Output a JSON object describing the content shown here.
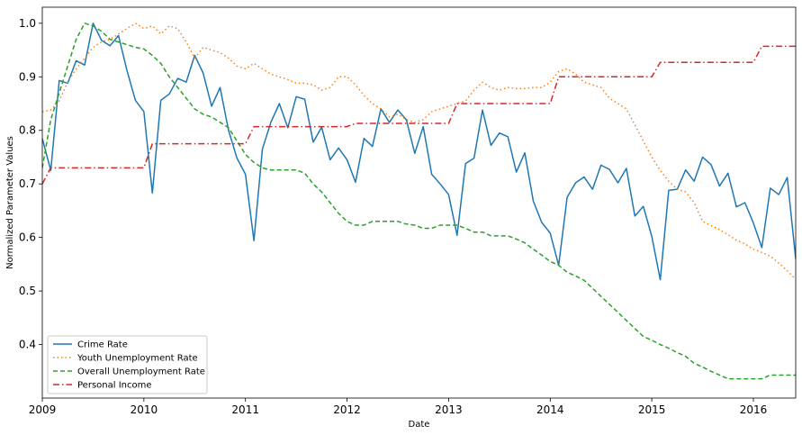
{
  "chart_data": {
    "type": "line",
    "title": "",
    "xlabel": "Date",
    "ylabel": "Normalized Parameter Values",
    "xlim": [
      "2009-01",
      "2016-06"
    ],
    "ylim": [
      0.3,
      1.03
    ],
    "x_ticks": [
      "2009",
      "2010",
      "2011",
      "2012",
      "2013",
      "2014",
      "2015",
      "2016"
    ],
    "y_ticks": [
      "0.4",
      "0.5",
      "0.6",
      "0.7",
      "0.8",
      "0.9",
      "1.0"
    ],
    "grid": false,
    "legend_position": "lower-left",
    "series": [
      {
        "name": "Crime Rate",
        "color": "#1f77b4",
        "style": "solid",
        "points": [
          [
            "2009-01",
            0.785
          ],
          [
            "2009-02",
            0.725
          ],
          [
            "2009-03",
            0.893
          ],
          [
            "2009-04",
            0.888
          ],
          [
            "2009-05",
            0.93
          ],
          [
            "2009-06",
            0.922
          ],
          [
            "2009-07",
            1.0
          ],
          [
            "2009-08",
            0.968
          ],
          [
            "2009-09",
            0.958
          ],
          [
            "2009-10",
            0.977
          ],
          [
            "2009-11",
            0.912
          ],
          [
            "2009-12",
            0.856
          ],
          [
            "2010-01",
            0.835
          ],
          [
            "2010-02",
            0.683
          ],
          [
            "2010-03",
            0.856
          ],
          [
            "2010-04",
            0.868
          ],
          [
            "2010-05",
            0.897
          ],
          [
            "2010-06",
            0.89
          ],
          [
            "2010-07",
            0.94
          ],
          [
            "2010-08",
            0.907
          ],
          [
            "2010-09",
            0.845
          ],
          [
            "2010-10",
            0.88
          ],
          [
            "2010-11",
            0.8
          ],
          [
            "2010-12",
            0.748
          ],
          [
            "2011-01",
            0.718
          ],
          [
            "2011-02",
            0.594
          ],
          [
            "2011-03",
            0.765
          ],
          [
            "2011-04",
            0.815
          ],
          [
            "2011-05",
            0.85
          ],
          [
            "2011-06",
            0.805
          ],
          [
            "2011-07",
            0.863
          ],
          [
            "2011-08",
            0.858
          ],
          [
            "2011-09",
            0.778
          ],
          [
            "2011-10",
            0.806
          ],
          [
            "2011-11",
            0.745
          ],
          [
            "2011-12",
            0.767
          ],
          [
            "2012-01",
            0.745
          ],
          [
            "2012-02",
            0.703
          ],
          [
            "2012-03",
            0.785
          ],
          [
            "2012-04",
            0.77
          ],
          [
            "2012-05",
            0.84
          ],
          [
            "2012-06",
            0.815
          ],
          [
            "2012-07",
            0.838
          ],
          [
            "2012-08",
            0.82
          ],
          [
            "2012-09",
            0.757
          ],
          [
            "2012-10",
            0.807
          ],
          [
            "2012-11",
            0.718
          ],
          [
            "2012-12",
            0.7
          ],
          [
            "2013-01",
            0.68
          ],
          [
            "2013-02",
            0.604
          ],
          [
            "2013-03",
            0.738
          ],
          [
            "2013-04",
            0.748
          ],
          [
            "2013-05",
            0.838
          ],
          [
            "2013-06",
            0.772
          ],
          [
            "2013-07",
            0.795
          ],
          [
            "2013-08",
            0.788
          ],
          [
            "2013-09",
            0.722
          ],
          [
            "2013-10",
            0.758
          ],
          [
            "2013-11",
            0.668
          ],
          [
            "2013-12",
            0.628
          ],
          [
            "2014-01",
            0.608
          ],
          [
            "2014-02",
            0.548
          ],
          [
            "2014-03",
            0.675
          ],
          [
            "2014-04",
            0.702
          ],
          [
            "2014-05",
            0.713
          ],
          [
            "2014-06",
            0.69
          ],
          [
            "2014-07",
            0.735
          ],
          [
            "2014-08",
            0.727
          ],
          [
            "2014-09",
            0.702
          ],
          [
            "2014-10",
            0.729
          ],
          [
            "2014-11",
            0.64
          ],
          [
            "2014-12",
            0.658
          ],
          [
            "2015-01",
            0.602
          ],
          [
            "2015-02",
            0.521
          ],
          [
            "2015-03",
            0.688
          ],
          [
            "2015-04",
            0.69
          ],
          [
            "2015-05",
            0.726
          ],
          [
            "2015-06",
            0.705
          ],
          [
            "2015-07",
            0.75
          ],
          [
            "2015-08",
            0.736
          ],
          [
            "2015-09",
            0.696
          ],
          [
            "2015-10",
            0.72
          ],
          [
            "2015-11",
            0.657
          ],
          [
            "2015-12",
            0.665
          ],
          [
            "2016-01",
            0.627
          ],
          [
            "2016-02",
            0.581
          ],
          [
            "2016-03",
            0.692
          ],
          [
            "2016-04",
            0.68
          ],
          [
            "2016-05",
            0.712
          ],
          [
            "2016-06",
            0.56
          ]
        ]
      },
      {
        "name": "Youth Unemployment Rate",
        "color": "#ff7f0e",
        "style": "dotted",
        "points": [
          [
            "2009-01",
            0.835
          ],
          [
            "2009-02",
            0.838
          ],
          [
            "2009-03",
            0.855
          ],
          [
            "2009-04",
            0.89
          ],
          [
            "2009-05",
            0.915
          ],
          [
            "2009-06",
            0.935
          ],
          [
            "2009-07",
            0.955
          ],
          [
            "2009-08",
            0.965
          ],
          [
            "2009-09",
            0.97
          ],
          [
            "2009-10",
            0.98
          ],
          [
            "2009-11",
            0.99
          ],
          [
            "2009-12",
            1.0
          ],
          [
            "2010-01",
            0.99
          ],
          [
            "2010-02",
            0.995
          ],
          [
            "2010-03",
            0.98
          ],
          [
            "2010-04",
            0.995
          ],
          [
            "2010-05",
            0.99
          ],
          [
            "2010-06",
            0.965
          ],
          [
            "2010-07",
            0.935
          ],
          [
            "2010-08",
            0.955
          ],
          [
            "2010-09",
            0.95
          ],
          [
            "2010-10",
            0.945
          ],
          [
            "2010-11",
            0.935
          ],
          [
            "2010-12",
            0.92
          ],
          [
            "2011-01",
            0.915
          ],
          [
            "2011-02",
            0.925
          ],
          [
            "2011-03",
            0.915
          ],
          [
            "2011-04",
            0.905
          ],
          [
            "2011-05",
            0.9
          ],
          [
            "2011-06",
            0.895
          ],
          [
            "2011-07",
            0.888
          ],
          [
            "2011-08",
            0.888
          ],
          [
            "2011-09",
            0.885
          ],
          [
            "2011-10",
            0.875
          ],
          [
            "2011-11",
            0.88
          ],
          [
            "2011-12",
            0.9
          ],
          [
            "2012-01",
            0.9
          ],
          [
            "2012-02",
            0.885
          ],
          [
            "2012-03",
            0.865
          ],
          [
            "2012-04",
            0.85
          ],
          [
            "2012-05",
            0.84
          ],
          [
            "2012-06",
            0.825
          ],
          [
            "2012-07",
            0.83
          ],
          [
            "2012-08",
            0.82
          ],
          [
            "2012-09",
            0.815
          ],
          [
            "2012-10",
            0.82
          ],
          [
            "2012-11",
            0.835
          ],
          [
            "2012-12",
            0.84
          ],
          [
            "2013-01",
            0.845
          ],
          [
            "2013-02",
            0.85
          ],
          [
            "2013-03",
            0.855
          ],
          [
            "2013-04",
            0.875
          ],
          [
            "2013-05",
            0.89
          ],
          [
            "2013-06",
            0.88
          ],
          [
            "2013-07",
            0.875
          ],
          [
            "2013-08",
            0.88
          ],
          [
            "2013-09",
            0.878
          ],
          [
            "2013-10",
            0.878
          ],
          [
            "2013-11",
            0.88
          ],
          [
            "2013-12",
            0.88
          ],
          [
            "2014-01",
            0.89
          ],
          [
            "2014-02",
            0.91
          ],
          [
            "2014-03",
            0.915
          ],
          [
            "2014-04",
            0.905
          ],
          [
            "2014-05",
            0.89
          ],
          [
            "2014-06",
            0.885
          ],
          [
            "2014-07",
            0.88
          ],
          [
            "2014-08",
            0.86
          ],
          [
            "2014-09",
            0.85
          ],
          [
            "2014-10",
            0.84
          ],
          [
            "2014-11",
            0.81
          ],
          [
            "2014-12",
            0.78
          ],
          [
            "2015-01",
            0.75
          ],
          [
            "2015-02",
            0.725
          ],
          [
            "2015-03",
            0.705
          ],
          [
            "2015-04",
            0.69
          ],
          [
            "2015-05",
            0.685
          ],
          [
            "2015-06",
            0.665
          ],
          [
            "2015-07",
            0.63
          ],
          [
            "2015-08",
            0.622
          ],
          [
            "2015-09",
            0.615
          ],
          [
            "2015-10",
            0.605
          ],
          [
            "2015-11",
            0.595
          ],
          [
            "2015-12",
            0.588
          ],
          [
            "2016-01",
            0.578
          ],
          [
            "2016-02",
            0.572
          ],
          [
            "2016-03",
            0.565
          ],
          [
            "2016-04",
            0.552
          ],
          [
            "2016-05",
            0.538
          ],
          [
            "2016-06",
            0.522
          ]
        ]
      },
      {
        "name": "Overall Unemployment Rate",
        "color": "#2ca02c",
        "style": "dashed",
        "points": [
          [
            "2009-01",
            0.73
          ],
          [
            "2009-02",
            0.82
          ],
          [
            "2009-03",
            0.87
          ],
          [
            "2009-04",
            0.92
          ],
          [
            "2009-05",
            0.97
          ],
          [
            "2009-06",
            1.0
          ],
          [
            "2009-07",
            0.995
          ],
          [
            "2009-08",
            0.985
          ],
          [
            "2009-09",
            0.97
          ],
          [
            "2009-10",
            0.965
          ],
          [
            "2009-11",
            0.96
          ],
          [
            "2009-12",
            0.955
          ],
          [
            "2010-01",
            0.952
          ],
          [
            "2010-02",
            0.94
          ],
          [
            "2010-03",
            0.925
          ],
          [
            "2010-04",
            0.9
          ],
          [
            "2010-05",
            0.88
          ],
          [
            "2010-06",
            0.86
          ],
          [
            "2010-07",
            0.84
          ],
          [
            "2010-08",
            0.83
          ],
          [
            "2010-09",
            0.825
          ],
          [
            "2010-10",
            0.815
          ],
          [
            "2010-11",
            0.805
          ],
          [
            "2010-12",
            0.78
          ],
          [
            "2011-01",
            0.755
          ],
          [
            "2011-02",
            0.74
          ],
          [
            "2011-03",
            0.73
          ],
          [
            "2011-04",
            0.726
          ],
          [
            "2011-05",
            0.726
          ],
          [
            "2011-06",
            0.726
          ],
          [
            "2011-07",
            0.726
          ],
          [
            "2011-08",
            0.72
          ],
          [
            "2011-09",
            0.7
          ],
          [
            "2011-10",
            0.685
          ],
          [
            "2011-11",
            0.665
          ],
          [
            "2011-12",
            0.645
          ],
          [
            "2012-01",
            0.63
          ],
          [
            "2012-02",
            0.623
          ],
          [
            "2012-03",
            0.623
          ],
          [
            "2012-04",
            0.63
          ],
          [
            "2012-05",
            0.63
          ],
          [
            "2012-06",
            0.63
          ],
          [
            "2012-07",
            0.63
          ],
          [
            "2012-08",
            0.625
          ],
          [
            "2012-09",
            0.623
          ],
          [
            "2012-10",
            0.617
          ],
          [
            "2012-11",
            0.617
          ],
          [
            "2012-12",
            0.623
          ],
          [
            "2013-01",
            0.623
          ],
          [
            "2013-02",
            0.623
          ],
          [
            "2013-03",
            0.617
          ],
          [
            "2013-04",
            0.61
          ],
          [
            "2013-05",
            0.61
          ],
          [
            "2013-06",
            0.603
          ],
          [
            "2013-07",
            0.603
          ],
          [
            "2013-08",
            0.603
          ],
          [
            "2013-09",
            0.597
          ],
          [
            "2013-10",
            0.59
          ],
          [
            "2013-11",
            0.578
          ],
          [
            "2013-12",
            0.567
          ],
          [
            "2014-01",
            0.555
          ],
          [
            "2014-02",
            0.548
          ],
          [
            "2014-03",
            0.535
          ],
          [
            "2014-04",
            0.528
          ],
          [
            "2014-05",
            0.52
          ],
          [
            "2014-06",
            0.505
          ],
          [
            "2014-07",
            0.49
          ],
          [
            "2014-08",
            0.475
          ],
          [
            "2014-09",
            0.46
          ],
          [
            "2014-10",
            0.445
          ],
          [
            "2014-11",
            0.43
          ],
          [
            "2014-12",
            0.415
          ],
          [
            "2015-01",
            0.408
          ],
          [
            "2015-02",
            0.4
          ],
          [
            "2015-03",
            0.393
          ],
          [
            "2015-04",
            0.385
          ],
          [
            "2015-05",
            0.378
          ],
          [
            "2015-06",
            0.365
          ],
          [
            "2015-07",
            0.358
          ],
          [
            "2015-08",
            0.35
          ],
          [
            "2015-09",
            0.343
          ],
          [
            "2015-10",
            0.336
          ],
          [
            "2015-11",
            0.336
          ],
          [
            "2015-12",
            0.336
          ],
          [
            "2016-01",
            0.336
          ],
          [
            "2016-02",
            0.336
          ],
          [
            "2016-03",
            0.343
          ],
          [
            "2016-04",
            0.343
          ],
          [
            "2016-05",
            0.343
          ],
          [
            "2016-06",
            0.343
          ]
        ]
      },
      {
        "name": "Personal Income",
        "color": "#d62728",
        "style": "dashdot",
        "points": [
          [
            "2009-01",
            0.7
          ],
          [
            "2009-02",
            0.73
          ],
          [
            "2010-01",
            0.73
          ],
          [
            "2010-02",
            0.775
          ],
          [
            "2011-01",
            0.775
          ],
          [
            "2011-02",
            0.807
          ],
          [
            "2012-01",
            0.807
          ],
          [
            "2012-02",
            0.813
          ],
          [
            "2013-01",
            0.813
          ],
          [
            "2013-02",
            0.85
          ],
          [
            "2014-01",
            0.85
          ],
          [
            "2014-02",
            0.9
          ],
          [
            "2015-01",
            0.9
          ],
          [
            "2015-02",
            0.927
          ],
          [
            "2016-01",
            0.927
          ],
          [
            "2016-02",
            0.957
          ],
          [
            "2016-06",
            0.957
          ]
        ]
      }
    ]
  }
}
